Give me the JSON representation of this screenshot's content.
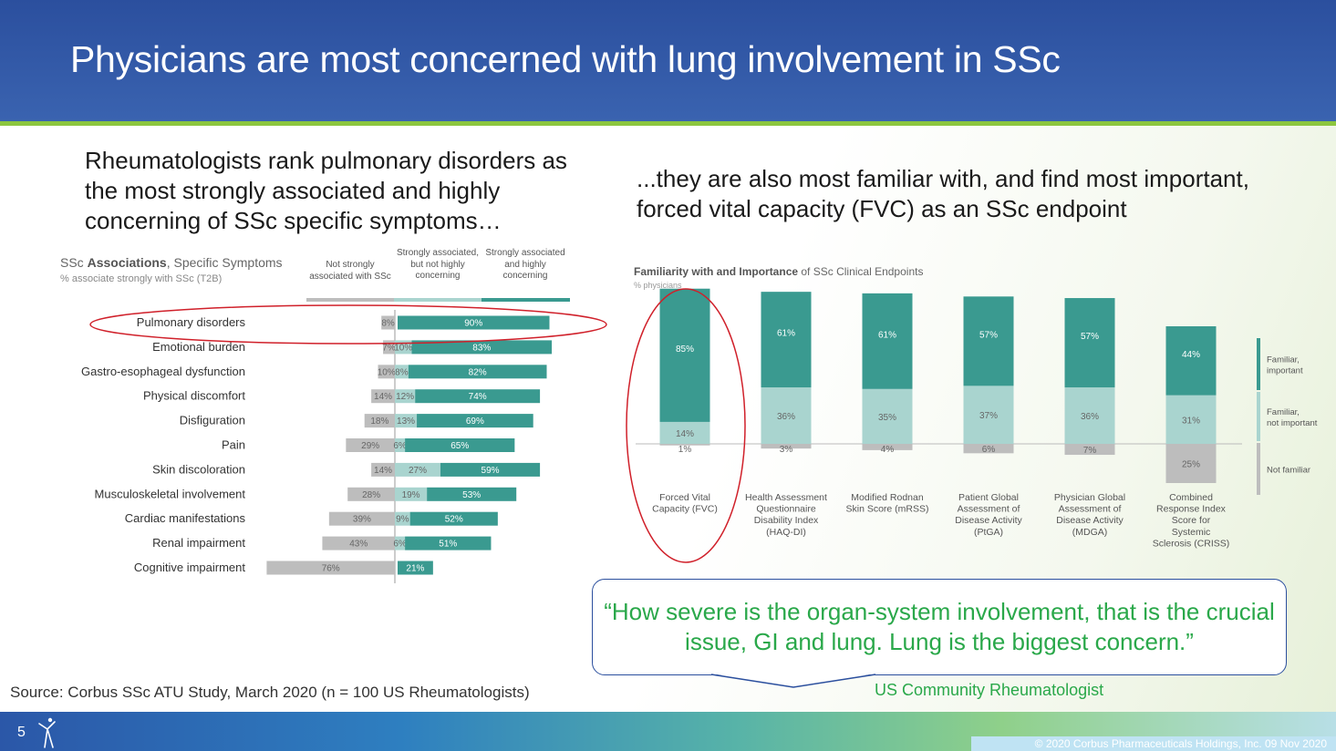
{
  "header": {
    "title": "Physicians are most concerned with lung involvement in SSc"
  },
  "left": {
    "heading": "Rheumatologists rank pulmonary disorders as the most strongly associated and highly concerning of SSc specific symptoms…"
  },
  "right": {
    "heading": "...they are also most familiar with, and find most important, forced vital capacity (FVC) as an SSc endpoint"
  },
  "chart_data": [
    {
      "type": "bar",
      "orientation": "horizontal",
      "stacked": "diverging",
      "title_prefix": "SSc ",
      "title_bold": "Associations",
      "title_suffix": ", Specific Symptoms",
      "subtitle": "% associate strongly with SSc (T2B)",
      "categories": [
        "Pulmonary disorders",
        "Emotional burden",
        "Gastro-esophageal dysfunction",
        "Physical discomfort",
        "Disfiguration",
        "Pain",
        "Skin discoloration",
        "Musculoskeletal involvement",
        "Cardiac manifestations",
        "Renal impairment",
        "Cognitive impairment"
      ],
      "series": [
        {
          "name": "Not strongly associated with SSc",
          "color": "#bdbdbd",
          "values": [
            8,
            7,
            10,
            14,
            18,
            29,
            14,
            28,
            39,
            43,
            76
          ]
        },
        {
          "name": "Strongly associated, but not highly concerning",
          "color": "#a9d4cf",
          "values": [
            null,
            10,
            8,
            12,
            13,
            6,
            27,
            19,
            9,
            6,
            null
          ]
        },
        {
          "name": "Strongly associated and highly concerning",
          "color": "#3a9a90",
          "values": [
            90,
            83,
            82,
            74,
            69,
            65,
            59,
            53,
            52,
            51,
            21
          ]
        }
      ],
      "highlight": "Pulmonary disorders"
    },
    {
      "type": "bar",
      "orientation": "vertical",
      "stacked": "diverging",
      "title_bold": "Familiarity with and Importance",
      "title_suffix": " of SSc Clinical Endpoints",
      "subtitle": "% physicians",
      "categories": [
        "Forced Vital Capacity (FVC)",
        "Health Assessment Questionnaire Disability Index (HAQ-DI)",
        "Modified Rodnan Skin Score (mRSS)",
        "Patient Global Assessment of Disease Activity (PtGA)",
        "Physician Global Assessment of Disease Activity (MDGA)",
        "Combined Response Index Score for Systemic Sclerosis (CRISS)"
      ],
      "category_lines": [
        [
          "Forced Vital",
          "Capacity (FVC)"
        ],
        [
          "Health Assessment",
          "Questionnaire",
          "Disability Index",
          "(HAQ-DI)"
        ],
        [
          "Modified Rodnan",
          "Skin Score (mRSS)"
        ],
        [
          "Patient Global",
          "Assessment of",
          "Disease Activity",
          "(PtGA)"
        ],
        [
          "Physician Global",
          "Assessment of",
          "Disease Activity",
          "(MDGA)"
        ],
        [
          "Combined",
          "Response Index",
          "Score for",
          "Systemic",
          "Sclerosis (CRISS)"
        ]
      ],
      "series": [
        {
          "name": "Familiar, important",
          "color": "#3a9a90",
          "values": [
            85,
            61,
            61,
            57,
            57,
            44
          ]
        },
        {
          "name": "Familiar, not important",
          "color": "#a9d4cf",
          "values": [
            14,
            36,
            35,
            37,
            36,
            31
          ]
        },
        {
          "name": "Not familiar",
          "color": "#bdbdbd",
          "values": [
            1,
            3,
            4,
            6,
            7,
            25
          ]
        }
      ],
      "legend": "right",
      "highlight": "Forced Vital Capacity (FVC)"
    }
  ],
  "quote": {
    "text": "“How severe is the organ-system involvement, that is the crucial issue, GI and lung. Lung is the biggest concern.”",
    "attribution": "US Community Rheumatologist"
  },
  "source": "Source: Corbus SSc ATU Study, March 2020 (n = 100 US Rheumatologists)",
  "footer": {
    "page_number": "5",
    "copyright": "© 2020 Corbus Pharmaceuticals Holdings, Inc. 09 Nov 2020",
    "logo_icon": "corbus-figure-icon"
  },
  "colors": {
    "header": "#2b4f9e",
    "accent_rule": "#8cc63f",
    "teal_dark": "#3a9a90",
    "teal_light": "#a9d4cf",
    "gray": "#bdbdbd",
    "highlight_circle": "#d0202a",
    "quote_green": "#2aa84a"
  }
}
